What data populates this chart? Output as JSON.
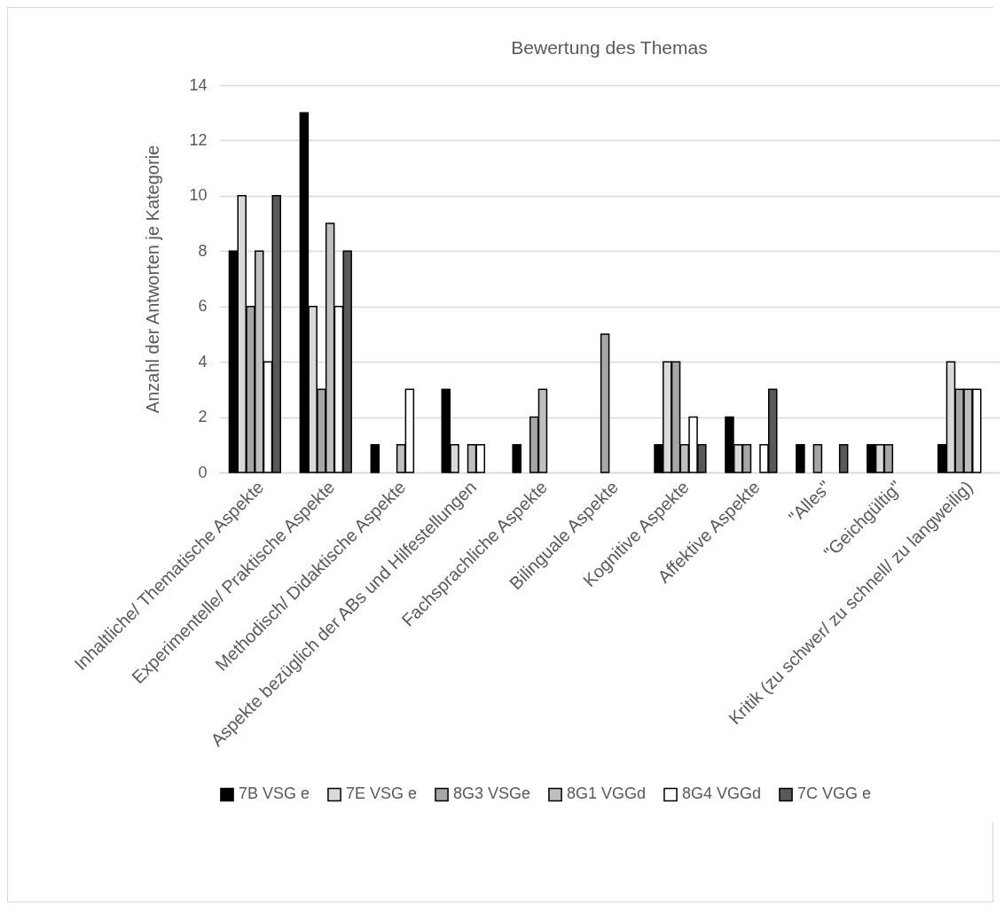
{
  "chart_data": {
    "type": "bar",
    "title": "Bewertung des Themas",
    "ylabel": "Anzahl der Antworten je Kategorie",
    "categories": [
      "Inhaltliche/ Thematische Aspekte",
      "Experimentelle/ Praktische Aspekte",
      "Methodisch/ Didaktische Aspekte",
      "Aspekte bezüglich der ABs und Hilfestellungen",
      "Fachsprachliche Aspekte",
      "Bilinguale Aspekte",
      "Kognitive Aspekte",
      "Affektive Aspekte",
      "\"Alles\"",
      "\"Geichgültig\"",
      "Kritik (zu schwer/ zu schnell/ zu langweilig)"
    ],
    "series": [
      {
        "name": "7B VSG e",
        "color": "#000000",
        "values": [
          8,
          13,
          1,
          3,
          1,
          0,
          1,
          2,
          1,
          1,
          1
        ]
      },
      {
        "name": "7E VSG e",
        "color": "#d9d9d9",
        "values": [
          10,
          6,
          0,
          1,
          0,
          0,
          4,
          1,
          0,
          1,
          4
        ]
      },
      {
        "name": "8G3 VSGe",
        "color": "#a6a6a6",
        "values": [
          6,
          3,
          0,
          0,
          2,
          5,
          4,
          1,
          1,
          1,
          3
        ]
      },
      {
        "name": "8G1 VGGd",
        "color": "#bfbfbf",
        "values": [
          8,
          9,
          1,
          1,
          3,
          0,
          1,
          0,
          0,
          0,
          3
        ]
      },
      {
        "name": "8G4 VGGd",
        "color": "#ffffff",
        "values": [
          4,
          6,
          3,
          1,
          0,
          0,
          2,
          1,
          0,
          0,
          3
        ]
      },
      {
        "name": "7C VGG e",
        "color": "#595959",
        "values": [
          10,
          8,
          0,
          0,
          0,
          0,
          1,
          3,
          1,
          0,
          0
        ]
      }
    ],
    "ylim": [
      0,
      14
    ],
    "yticks": [
      0,
      2,
      4,
      6,
      8,
      10,
      12,
      14
    ],
    "grid": "y",
    "legend": "bottom"
  }
}
